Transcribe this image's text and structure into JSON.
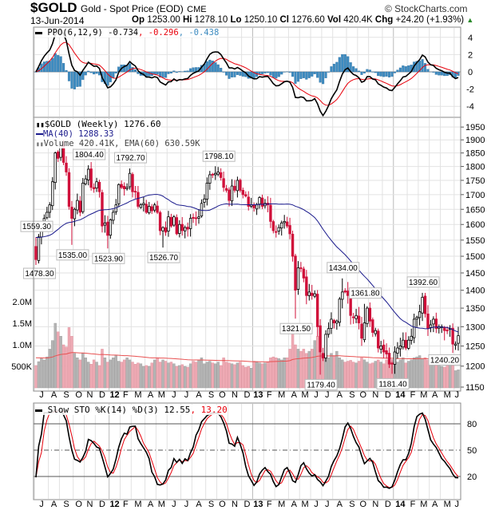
{
  "header": {
    "symbol": "$GOLD",
    "name": "Gold - Spot Price (EOD)",
    "exchange": "CME",
    "watermark": "© StockCharts.com",
    "date": "13-Jun-2014",
    "op_label": "Op",
    "op": "1253.00",
    "hi_label": "Hi",
    "hi": "1278.10",
    "lo_label": "Lo",
    "lo": "1250.10",
    "cl_label": "Cl",
    "cl": "1276.60",
    "vol_label": "Vol",
    "vol": "420.4K",
    "chg_label": "Chg",
    "chg": "+24.20 (+1.93%)"
  },
  "legends": {
    "ppo_name": "PPO(6,12,9) -0.734",
    "ppo_signal": ", -0.296",
    "ppo_hist": ", -0.438",
    "price_name": "$GOLD (Weekly) 1276.60",
    "ma_name": "MA(40) 1288.33",
    "volume_name": "Volume 420.41K, EMA(60) 630.59K",
    "sto_name": "Slow STO %K(14) %D(3) 12.55",
    "sto_d": ", 13.20"
  },
  "colors": {
    "up": "#000000",
    "down": "#d0103a",
    "ma": "#1a1a8c",
    "ppo_line": "#000000",
    "ppo_signal": "#e8000b",
    "ppo_hist": "#3d8bc0",
    "vol_up": "#b4b4b4",
    "vol_down": "#eeaab4",
    "vol_ema": "#e85050",
    "sto_k": "#000000",
    "sto_d": "#e8000b"
  },
  "chart_data": {
    "type": "candlestick",
    "title": "$GOLD Weekly",
    "scale": "log",
    "ylim": [
      1150,
      1950
    ],
    "price_ticks": [
      1150,
      1200,
      1250,
      1300,
      1350,
      1400,
      1450,
      1500,
      1550,
      1600,
      1650,
      1700,
      1750,
      1800,
      1850,
      1900,
      1950
    ],
    "volume_ticks": [
      {
        "v": 500,
        "label": "500K"
      },
      {
        "v": 1000,
        "label": "1.0M"
      },
      {
        "v": 1500,
        "label": "1.5M"
      },
      {
        "v": 2000,
        "label": "2.0M"
      }
    ],
    "ppo_ticks": [
      4,
      2,
      0,
      -2,
      -4
    ],
    "sto_ticks": [
      80,
      50,
      20
    ],
    "months": [
      {
        "label": "J",
        "weeks": 5
      },
      {
        "label": "A",
        "weeks": 4
      },
      {
        "label": "S",
        "weeks": 5
      },
      {
        "label": "O",
        "weeks": 4
      },
      {
        "label": "N",
        "weeks": 4
      },
      {
        "label": "D",
        "weeks": 5
      },
      {
        "label": "12",
        "weeks": 4,
        "year": true
      },
      {
        "label": "F",
        "weeks": 4
      },
      {
        "label": "M",
        "weeks": 5
      },
      {
        "label": "A",
        "weeks": 4
      },
      {
        "label": "M",
        "weeks": 4
      },
      {
        "label": "J",
        "weeks": 5
      },
      {
        "label": "J",
        "weeks": 4
      },
      {
        "label": "A",
        "weeks": 5
      },
      {
        "label": "S",
        "weeks": 4
      },
      {
        "label": "O",
        "weeks": 4
      },
      {
        "label": "N",
        "weeks": 5
      },
      {
        "label": "D",
        "weeks": 4
      },
      {
        "label": "13",
        "weeks": 4,
        "year": true
      },
      {
        "label": "F",
        "weeks": 4
      },
      {
        "label": "M",
        "weeks": 5
      },
      {
        "label": "A",
        "weeks": 4
      },
      {
        "label": "M",
        "weeks": 4
      },
      {
        "label": "J",
        "weeks": 4
      },
      {
        "label": "J",
        "weeks": 4
      },
      {
        "label": "A",
        "weeks": 5
      },
      {
        "label": "S",
        "weeks": 4
      },
      {
        "label": "O",
        "weeks": 4
      },
      {
        "label": "N",
        "weeks": 5
      },
      {
        "label": "D",
        "weeks": 4
      },
      {
        "label": "14",
        "weeks": 5,
        "year": true
      },
      {
        "label": "F",
        "weeks": 4
      },
      {
        "label": "M",
        "weeks": 4
      },
      {
        "label": "A",
        "weeks": 4
      },
      {
        "label": "M",
        "weeks": 5
      },
      {
        "label": "J",
        "weeks": 2
      }
    ],
    "closes": [
      1490,
      1560,
      1600,
      1620,
      1640,
      1665,
      1745,
      1850,
      1830,
      1880,
      1815,
      1780,
      1660,
      1620,
      1650,
      1680,
      1640,
      1740,
      1755,
      1790,
      1725,
      1720,
      1745,
      1710,
      1595,
      1605,
      1565,
      1615,
      1640,
      1665,
      1735,
      1725,
      1720,
      1725,
      1775,
      1710,
      1710,
      1660,
      1665,
      1670,
      1640,
      1660,
      1645,
      1665,
      1640,
      1580,
      1590,
      1575,
      1625,
      1595,
      1625,
      1570,
      1600,
      1580,
      1590,
      1585,
      1620,
      1620,
      1620,
      1625,
      1670,
      1685,
      1740,
      1770,
      1770,
      1775,
      1780,
      1760,
      1725,
      1715,
      1680,
      1730,
      1715,
      1750,
      1715,
      1700,
      1695,
      1660,
      1665,
      1655,
      1665,
      1690,
      1660,
      1670,
      1665,
      1610,
      1580,
      1575,
      1590,
      1605,
      1610,
      1595,
      1570,
      1500,
      1400,
      1465,
      1465,
      1435,
      1385,
      1395,
      1385,
      1390,
      1300,
      1235,
      1220,
      1280,
      1295,
      1320,
      1310,
      1315,
      1375,
      1395,
      1395,
      1385,
      1330,
      1325,
      1330,
      1310,
      1270,
      1310,
      1350,
      1315,
      1285,
      1290,
      1245,
      1250,
      1235,
      1230,
      1205,
      1205,
      1235,
      1245,
      1250,
      1265,
      1245,
      1265,
      1275,
      1320,
      1325,
      1340,
      1380,
      1335,
      1295,
      1305,
      1320,
      1295,
      1300,
      1300,
      1290,
      1290,
      1295,
      1255,
      1255,
      1276.6
    ],
    "volume_k": [
      520,
      610,
      700,
      650,
      720,
      900,
      1100,
      1500,
      1300,
      1200,
      1000,
      950,
      1400,
      1200,
      800,
      700,
      650,
      800,
      700,
      600,
      550,
      650,
      600,
      520,
      900,
      700,
      600,
      650,
      700,
      750,
      620,
      600,
      650,
      700,
      650,
      600,
      550,
      580,
      560,
      500,
      520,
      500,
      580,
      650,
      700,
      600,
      650,
      620,
      580,
      600,
      560,
      500,
      520,
      540,
      500,
      480,
      560,
      620,
      600,
      650,
      700,
      560,
      600,
      620,
      580,
      560,
      600,
      520,
      700,
      600,
      580,
      560,
      540,
      580,
      600,
      520,
      480,
      500,
      460,
      620,
      600,
      580,
      560,
      580,
      600,
      700,
      720,
      700,
      680,
      650,
      700,
      700,
      900,
      1450,
      1000,
      900,
      850,
      900,
      800,
      850,
      900,
      1100,
      1200,
      900,
      800,
      750,
      700,
      800,
      750,
      850,
      700,
      650,
      600,
      620,
      640,
      600,
      580,
      620,
      700,
      650,
      600,
      560,
      580,
      620,
      650,
      600,
      560,
      650,
      700,
      600,
      620,
      600,
      650,
      700,
      580,
      620,
      650,
      700,
      720,
      750,
      680,
      700,
      650,
      580,
      560,
      520,
      540,
      500,
      480,
      520,
      600,
      520,
      400,
      420
    ],
    "annotations": [
      {
        "week": 0,
        "value": 1559.3,
        "label": "1559.30",
        "pos": "above"
      },
      {
        "week": 1,
        "value": 1478.3,
        "label": "1478.30",
        "pos": "below"
      },
      {
        "week": 13,
        "value": 1535.0,
        "label": "1535.00",
        "pos": "below"
      },
      {
        "week": 19,
        "value": 1804.4,
        "label": "1804.40",
        "pos": "above"
      },
      {
        "week": 26,
        "value": 1523.9,
        "label": "1523.90",
        "pos": "below"
      },
      {
        "week": 34,
        "value": 1792.7,
        "label": "1792.70",
        "pos": "above"
      },
      {
        "week": 46,
        "value": 1526.7,
        "label": "1526.70",
        "pos": "below"
      },
      {
        "week": 66,
        "value": 1798.1,
        "label": "1798.10",
        "pos": "above"
      },
      {
        "week": 94,
        "value": 1321.5,
        "label": "1321.50",
        "pos": "below"
      },
      {
        "week": 103,
        "value": 1179.4,
        "label": "1179.40",
        "pos": "below"
      },
      {
        "week": 111,
        "value": 1434.0,
        "label": "1434.00",
        "pos": "above"
      },
      {
        "week": 119,
        "value": 1361.8,
        "label": "1361.80",
        "pos": "above"
      },
      {
        "week": 129,
        "value": 1181.4,
        "label": "1181.40",
        "pos": "below"
      },
      {
        "week": 140,
        "value": 1392.6,
        "label": "1392.60",
        "pos": "above"
      },
      {
        "week": 152,
        "value": 1240.2,
        "label": "1240.20",
        "pos": "below"
      }
    ],
    "indicators": {
      "ma_period": 40,
      "volume_ema": 60,
      "ppo": [
        6,
        12,
        9
      ],
      "sto": [
        14,
        3,
        3
      ]
    }
  }
}
